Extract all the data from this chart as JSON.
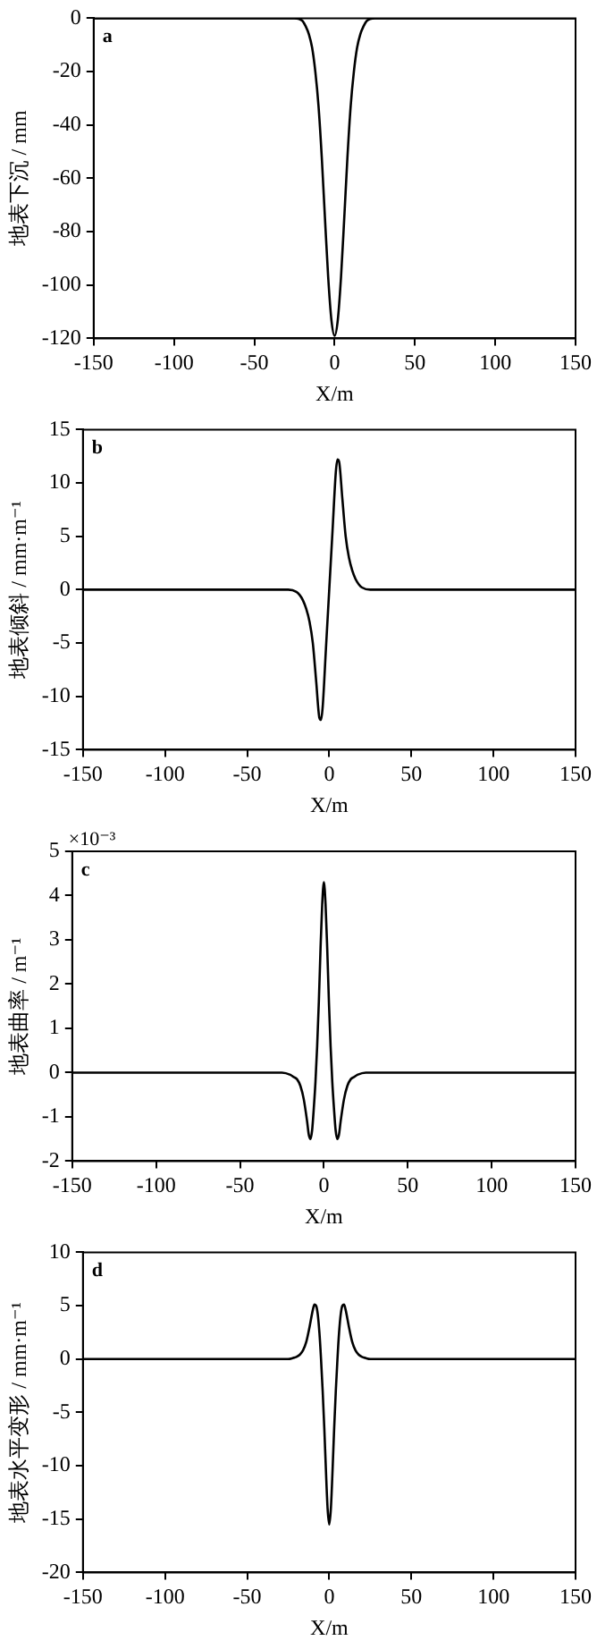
{
  "chart_data": [
    {
      "type": "line",
      "xlabel": "X/m",
      "ylabel": "地表下沉 / mm",
      "annotations": [
        "a"
      ],
      "x": [
        -150,
        -25,
        -22,
        -20,
        -18,
        -16,
        -14,
        -12,
        -10,
        -8,
        -6,
        -4,
        -2,
        0,
        2,
        4,
        6,
        8,
        10,
        12,
        14,
        16,
        18,
        20,
        22,
        25,
        150
      ],
      "series": [
        {
          "color": "#000000",
          "values": [
            0,
            0,
            -0.3,
            -1,
            -3,
            -6,
            -11,
            -20,
            -33,
            -52,
            -75,
            -97,
            -113,
            -119,
            -113,
            -97,
            -75,
            -52,
            -33,
            -20,
            -11,
            -6,
            -3,
            -1,
            -0.3,
            0,
            0
          ]
        }
      ],
      "xlim": [
        -150,
        150
      ],
      "xticks": [
        -150,
        -100,
        -50,
        0,
        50,
        100,
        150
      ],
      "ylim": [
        -120,
        0
      ],
      "yticks": [
        -120,
        -100,
        -80,
        -60,
        -40,
        -20,
        0
      ]
    },
    {
      "type": "line",
      "xlabel": "X/m",
      "ylabel": "地表倾斜 / mm·m⁻¹",
      "annotations": [
        "b"
      ],
      "x": [
        -150,
        -25,
        -20,
        -18,
        -16,
        -14,
        -12,
        -10,
        -8,
        -6,
        -5,
        -4,
        -2,
        0,
        2,
        4,
        5,
        6,
        8,
        10,
        12,
        14,
        16,
        18,
        20,
        25,
        150
      ],
      "series": [
        {
          "color": "#000000",
          "values": [
            0,
            0,
            -0.2,
            -0.5,
            -1,
            -1.8,
            -3,
            -5,
            -8.5,
            -12,
            -12.2,
            -11,
            -5.5,
            0,
            5.5,
            11,
            12.2,
            12,
            8.5,
            5,
            3,
            1.8,
            1,
            0.5,
            0.2,
            0,
            0
          ]
        }
      ],
      "xlim": [
        -150,
        150
      ],
      "xticks": [
        -150,
        -100,
        -50,
        0,
        50,
        100,
        150
      ],
      "ylim": [
        -15,
        15
      ],
      "yticks": [
        -15,
        -10,
        -5,
        0,
        5,
        10,
        15
      ]
    },
    {
      "type": "line",
      "xlabel": "X/m",
      "ylabel": "地表曲率 / m⁻¹",
      "annotations": [
        "×10⁻³",
        "c"
      ],
      "x": [
        -150,
        -25,
        -20,
        -18,
        -16,
        -14,
        -12,
        -10,
        -9,
        -8,
        -7,
        -6,
        -5,
        -4,
        -3,
        -2,
        -1,
        0,
        1,
        2,
        3,
        4,
        5,
        6,
        7,
        8,
        9,
        10,
        12,
        14,
        16,
        18,
        20,
        25,
        150
      ],
      "series": [
        {
          "color": "#000000",
          "values": [
            0,
            0,
            -0.05,
            -0.1,
            -0.15,
            -0.3,
            -0.6,
            -1.1,
            -1.4,
            -1.5,
            -1.3,
            -0.8,
            -0.2,
            0.6,
            1.6,
            2.8,
            3.8,
            4.3,
            3.8,
            2.8,
            1.6,
            0.6,
            -0.2,
            -0.8,
            -1.3,
            -1.5,
            -1.4,
            -1.1,
            -0.6,
            -0.3,
            -0.15,
            -0.1,
            -0.05,
            0,
            0
          ]
        }
      ],
      "xlim": [
        -150,
        150
      ],
      "xticks": [
        -150,
        -100,
        -50,
        0,
        50,
        100,
        150
      ],
      "ylim": [
        -2,
        5
      ],
      "yticks": [
        -2,
        -1,
        0,
        1,
        2,
        3,
        4,
        5
      ]
    },
    {
      "type": "line",
      "xlabel": "X/m",
      "ylabel": "地表水平变形 / mm·m⁻¹",
      "annotations": [
        "d"
      ],
      "x": [
        -150,
        -25,
        -22,
        -20,
        -18,
        -16,
        -14,
        -12,
        -10,
        -9,
        -8,
        -7,
        -6,
        -5,
        -4,
        -3,
        -2,
        -1,
        0,
        1,
        2,
        3,
        4,
        5,
        6,
        7,
        8,
        9,
        10,
        12,
        14,
        16,
        18,
        20,
        22,
        25,
        150
      ],
      "series": [
        {
          "color": "#000000",
          "values": [
            0,
            0,
            0.1,
            0.2,
            0.4,
            0.8,
            1.6,
            3,
            4.6,
            5.1,
            5,
            4.2,
            2.5,
            0,
            -3,
            -6.5,
            -10.5,
            -14,
            -15.5,
            -14,
            -10.5,
            -6.5,
            -3,
            0,
            2.5,
            4.2,
            5,
            5.1,
            4.6,
            3,
            1.6,
            0.8,
            0.4,
            0.2,
            0.1,
            0,
            0
          ]
        }
      ],
      "xlim": [
        -150,
        150
      ],
      "xticks": [
        -150,
        -100,
        -50,
        0,
        50,
        100,
        150
      ],
      "ylim": [
        -20,
        10
      ],
      "yticks": [
        -20,
        -15,
        -10,
        -5,
        0,
        5,
        10
      ]
    }
  ]
}
